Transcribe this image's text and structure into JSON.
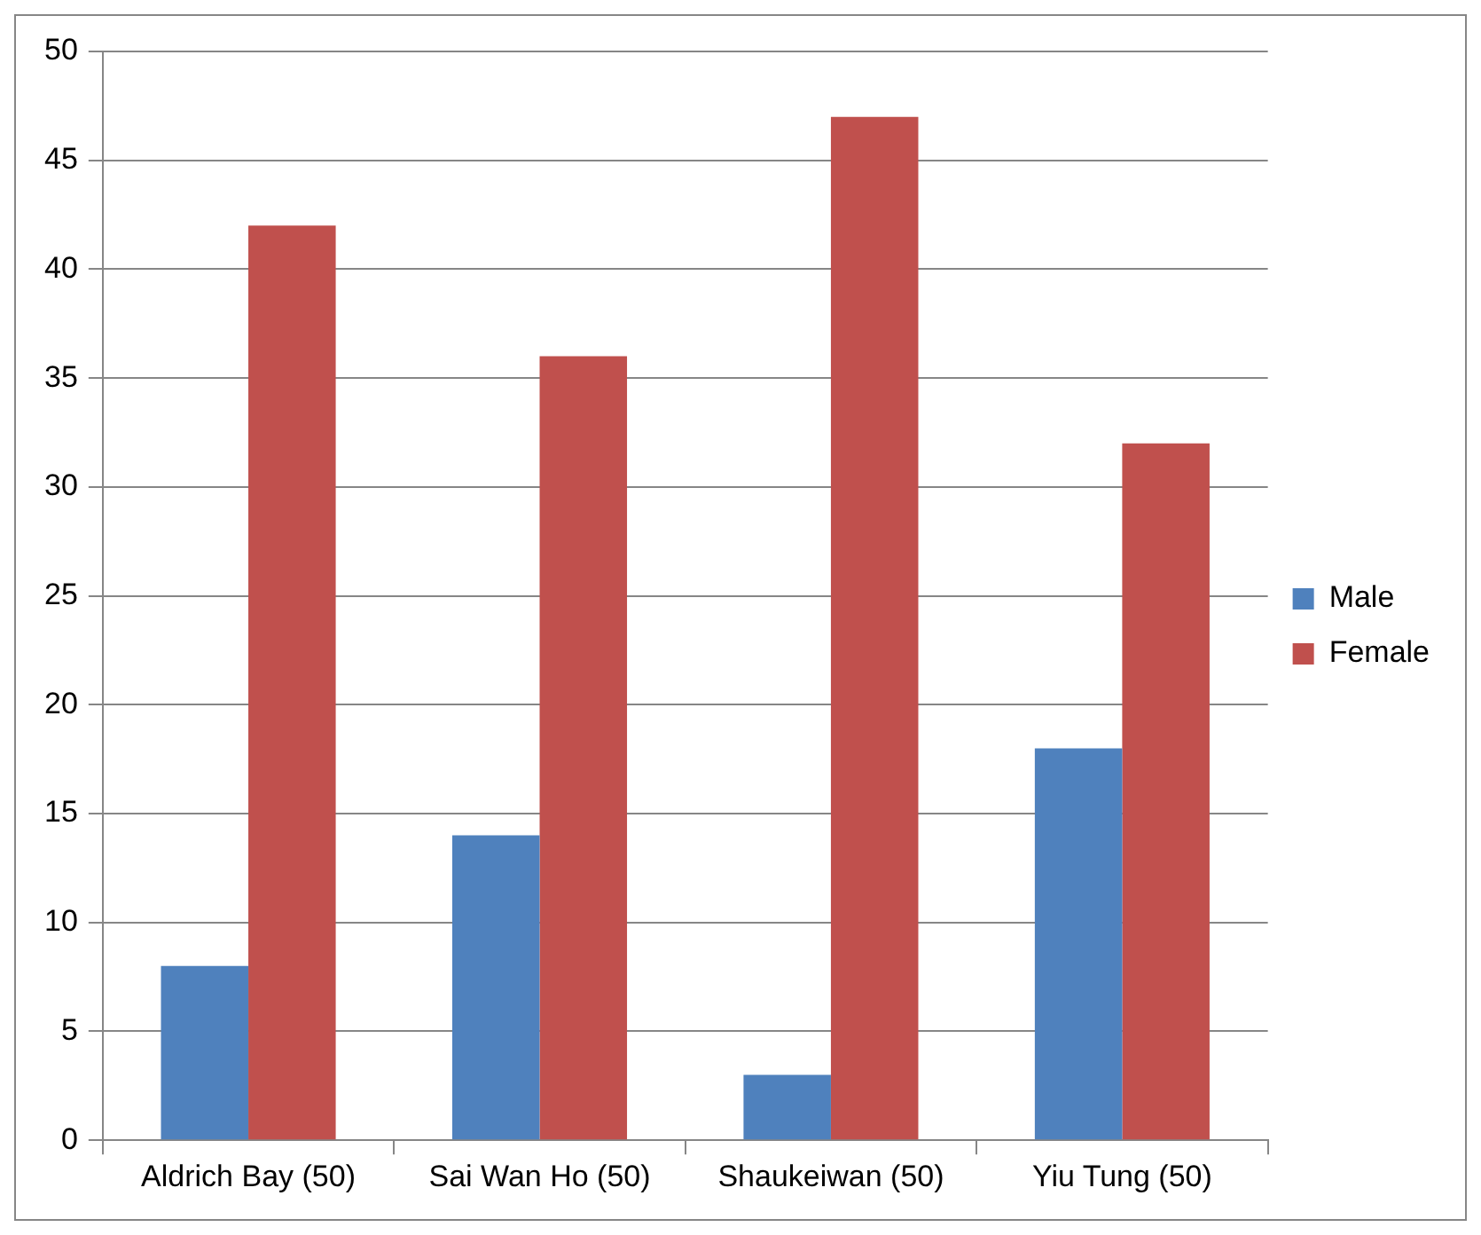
{
  "chart_data": {
    "type": "bar",
    "categories": [
      "Aldrich Bay (50)",
      "Sai Wan Ho (50)",
      "Shaukeiwan (50)",
      "Yiu Tung (50)"
    ],
    "series": [
      {
        "name": "Male",
        "color": "#4f81bd",
        "values": [
          8,
          14,
          3,
          18
        ]
      },
      {
        "name": "Female",
        "color": "#c0504d",
        "values": [
          42,
          36,
          47,
          32
        ]
      }
    ],
    "ylim": [
      0,
      50
    ],
    "yticks": [
      0,
      5,
      10,
      15,
      20,
      25,
      30,
      35,
      40,
      45,
      50
    ],
    "grid": "y",
    "legend": "right"
  }
}
